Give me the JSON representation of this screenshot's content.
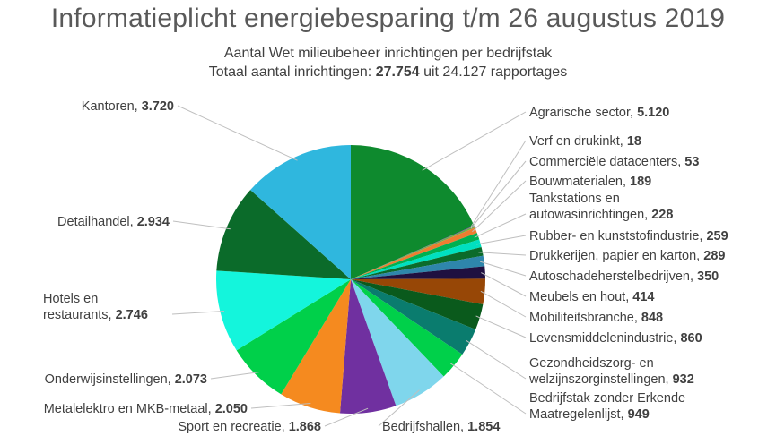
{
  "title": "Informatieplicht energiebesparing t/m 26 augustus 2019",
  "subtitle_line1": "Aantal Wet milieubeheer inrichtingen per bedrijfstak",
  "subtitle_line2_prefix": "Totaal aantal inrichtingen:",
  "subtitle_total": "27.754",
  "subtitle_line2_suffix": "uit 24.127 rapportages",
  "chart_data": {
    "type": "pie",
    "title": "Informatieplicht energiebesparing t/m 26 augustus 2019",
    "subtitle": "Aantal Wet milieubeheer inrichtingen per bedrijfstak",
    "total": 27754,
    "start_angle_deg": 0,
    "direction": "clockwise",
    "slices": [
      {
        "label": "Agrarische sector",
        "display": "5.120",
        "value": 5120,
        "color": "#0E8A2E"
      },
      {
        "label": "Verf en drukinkt",
        "display": "18",
        "value": 18,
        "color": "#7030A0"
      },
      {
        "label": "Commerciële datacenters",
        "display": "53",
        "value": 53,
        "color": "#70AD47"
      },
      {
        "label": "Bouwmaterialen",
        "display": "189",
        "value": 189,
        "color": "#ED7D31"
      },
      {
        "label": "Tankstations en autowasinrichtingen",
        "display": "228",
        "value": 228,
        "color": "#00B050"
      },
      {
        "label": "Rubber- en kunststofindustrie",
        "display": "259",
        "value": 259,
        "color": "#00E0C0"
      },
      {
        "label": "Drukkerijen, papier en karton",
        "display": "289",
        "value": 289,
        "color": "#0B6B2A"
      },
      {
        "label": "Autoschadeherstelbedrijven",
        "display": "350",
        "value": 350,
        "color": "#2E86AB"
      },
      {
        "label": "Meubels en hout",
        "display": "414",
        "value": 414,
        "color": "#1F1040"
      },
      {
        "label": "Mobiliteitsbranche",
        "display": "848",
        "value": 848,
        "color": "#974706"
      },
      {
        "label": "Levensmiddelenindustrie",
        "display": "860",
        "value": 860,
        "color": "#0A5A1C"
      },
      {
        "label": "Gezondheidszorg- en welzijnszorginstellingen",
        "display": "932",
        "value": 932,
        "color": "#0A7C6E"
      },
      {
        "label": "Bedrijfstak zonder Erkende Maatregelenlijst",
        "display": "949",
        "value": 949,
        "color": "#00D04A"
      },
      {
        "label": "Bedrijfshallen",
        "display": "1.854",
        "value": 1854,
        "color": "#7FD6EC"
      },
      {
        "label": "Sport en recreatie",
        "display": "1.868",
        "value": 1868,
        "color": "#7030A0"
      },
      {
        "label": "Metalelektro en MKB-metaal",
        "display": "2.050",
        "value": 2050,
        "color": "#F58A1F"
      },
      {
        "label": "Onderwijsinstellingen",
        "display": "2.073",
        "value": 2073,
        "color": "#00D04A"
      },
      {
        "label": "Hotels en restaurants",
        "display": "2.746",
        "value": 2746,
        "color": "#14F5DC"
      },
      {
        "label": "Detailhandel",
        "display": "2.934",
        "value": 2934,
        "color": "#0B6B2A"
      },
      {
        "label": "Kantoren",
        "display": "3.720",
        "value": 3720,
        "color": "#2FB7DE"
      }
    ]
  }
}
